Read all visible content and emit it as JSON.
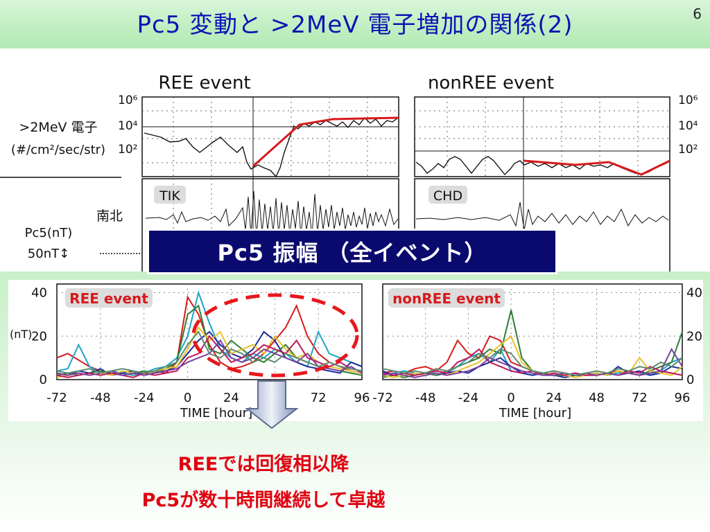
{
  "slide": {
    "title": "Pc5 変動と >2MeV 電子増加の関係(2)",
    "page_number": "6"
  },
  "upper_figure": {
    "ree_title": "REE event",
    "nonree_title": "nonREE event",
    "electron_label_1": ">2MeV 電子",
    "electron_label_2": "(#/cm²/sec/str)",
    "station_ree": "TIK",
    "station_nonree": "CHD",
    "direction_label": "南北",
    "pc5_unit": "Pc5(nT)",
    "scale_label": "50nT↕",
    "y_ticks": [
      "10⁶",
      "10⁴",
      "10²"
    ]
  },
  "banner_text": "Pc5 振幅 （全イベント）",
  "conclusion": {
    "line1": "REEでは回復相以降",
    "line2": "Pc5が数十時間継続して卓越"
  },
  "chart_data": [
    {
      "type": "line",
      "title": "REE event",
      "xlabel": "TIME [hour]",
      "ylabel": "(nT)",
      "xlim": [
        -72,
        96
      ],
      "ylim": [
        0,
        44
      ],
      "x_ticks": [
        -72,
        -48,
        -24,
        0,
        24,
        48,
        72,
        96
      ],
      "y_ticks": [
        0,
        20,
        40
      ],
      "x": [
        -72,
        -66,
        -60,
        -54,
        -48,
        -42,
        -36,
        -30,
        -24,
        -18,
        -12,
        -6,
        0,
        6,
        12,
        18,
        24,
        30,
        36,
        42,
        48,
        54,
        60,
        66,
        72,
        78,
        84,
        90,
        96
      ],
      "series": [
        {
          "color": "#d7191c",
          "values": [
            10,
            12,
            9,
            6,
            4,
            3,
            3,
            2,
            3,
            4,
            3,
            8,
            38,
            30,
            16,
            8,
            5,
            6,
            8,
            12,
            18,
            24,
            34,
            20,
            12,
            8,
            6,
            4,
            3
          ]
        },
        {
          "color": "#1fa3c6",
          "values": [
            4,
            5,
            16,
            6,
            3,
            4,
            3,
            2,
            3,
            5,
            6,
            10,
            20,
            40,
            26,
            14,
            10,
            8,
            12,
            10,
            14,
            12,
            8,
            6,
            22,
            12,
            10,
            8,
            6
          ]
        },
        {
          "color": "#1a2a9c",
          "values": [
            3,
            2,
            4,
            3,
            5,
            2,
            3,
            4,
            2,
            3,
            4,
            6,
            12,
            18,
            22,
            16,
            12,
            10,
            14,
            22,
            18,
            10,
            8,
            6,
            5,
            4,
            3,
            8,
            6
          ]
        },
        {
          "color": "#2e7d32",
          "values": [
            2,
            3,
            2,
            3,
            4,
            3,
            2,
            3,
            4,
            3,
            5,
            8,
            30,
            34,
            14,
            12,
            18,
            14,
            10,
            8,
            12,
            16,
            10,
            8,
            6,
            5,
            4,
            3,
            2
          ]
        },
        {
          "color": "#e6c229",
          "values": [
            1,
            2,
            3,
            2,
            3,
            2,
            4,
            3,
            2,
            4,
            5,
            6,
            14,
            24,
            18,
            22,
            12,
            14,
            16,
            12,
            20,
            14,
            10,
            12,
            8,
            6,
            5,
            4,
            3
          ]
        },
        {
          "color": "#c2185b",
          "values": [
            2,
            1,
            2,
            3,
            2,
            3,
            2,
            1,
            3,
            2,
            3,
            4,
            10,
            12,
            20,
            14,
            8,
            10,
            12,
            16,
            14,
            12,
            18,
            10,
            8,
            6,
            8,
            5,
            4
          ]
        },
        {
          "color": "#7b3fa0",
          "values": [
            3,
            2,
            3,
            2,
            3,
            4,
            2,
            3,
            2,
            3,
            4,
            5,
            8,
            10,
            12,
            18,
            10,
            8,
            10,
            14,
            12,
            10,
            8,
            12,
            6,
            5,
            4,
            6,
            3
          ]
        },
        {
          "color": "#5d8a6e",
          "values": [
            4,
            3,
            4,
            5,
            3,
            4,
            5,
            4,
            3,
            4,
            6,
            8,
            16,
            22,
            12,
            10,
            14,
            12,
            8,
            10,
            8,
            12,
            10,
            8,
            6,
            8,
            6,
            5,
            4
          ]
        }
      ]
    },
    {
      "type": "line",
      "title": "nonREE event",
      "xlabel": "TIME [hour]",
      "ylabel": "",
      "xlim": [
        -72,
        96
      ],
      "ylim": [
        0,
        44
      ],
      "x_ticks": [
        -72,
        -48,
        -24,
        0,
        24,
        48,
        72,
        96
      ],
      "y_ticks": [
        0,
        20,
        40
      ],
      "x": [
        -72,
        -66,
        -60,
        -54,
        -48,
        -42,
        -36,
        -30,
        -24,
        -18,
        -12,
        -6,
        0,
        6,
        12,
        18,
        24,
        30,
        36,
        42,
        48,
        54,
        60,
        66,
        72,
        78,
        84,
        90,
        96
      ],
      "series": [
        {
          "color": "#d7191c",
          "values": [
            3,
            4,
            3,
            5,
            6,
            4,
            8,
            18,
            12,
            10,
            20,
            18,
            8,
            6,
            4,
            3,
            4,
            3,
            2,
            3,
            2,
            3,
            4,
            3,
            2,
            3,
            4,
            3,
            2
          ]
        },
        {
          "color": "#1fa3c6",
          "values": [
            2,
            3,
            4,
            3,
            2,
            4,
            3,
            6,
            10,
            12,
            8,
            14,
            4,
            3,
            2,
            3,
            2,
            2,
            3,
            2,
            3,
            2,
            3,
            4,
            3,
            2,
            4,
            8,
            10
          ]
        },
        {
          "color": "#1a2a9c",
          "values": [
            4,
            2,
            3,
            2,
            3,
            2,
            3,
            4,
            3,
            6,
            8,
            10,
            6,
            3,
            2,
            3,
            2,
            1,
            2,
            2,
            3,
            2,
            6,
            3,
            4,
            2,
            3,
            6,
            5
          ]
        },
        {
          "color": "#2e7d32",
          "values": [
            1,
            2,
            1,
            2,
            3,
            2,
            4,
            6,
            8,
            10,
            14,
            12,
            32,
            10,
            4,
            3,
            2,
            2,
            3,
            2,
            3,
            2,
            4,
            3,
            2,
            4,
            6,
            8,
            22
          ]
        },
        {
          "color": "#e6c229",
          "values": [
            2,
            1,
            2,
            3,
            2,
            3,
            2,
            4,
            6,
            8,
            12,
            16,
            20,
            8,
            4,
            2,
            3,
            2,
            1,
            2,
            3,
            2,
            4,
            3,
            10,
            4,
            3,
            2,
            6
          ]
        },
        {
          "color": "#c2185b",
          "values": [
            3,
            2,
            3,
            2,
            3,
            4,
            3,
            8,
            10,
            14,
            8,
            6,
            4,
            3,
            4,
            2,
            3,
            2,
            3,
            2,
            2,
            3,
            2,
            4,
            3,
            6,
            4,
            3,
            2
          ]
        },
        {
          "color": "#7b3fa0",
          "values": [
            2,
            3,
            2,
            1,
            2,
            3,
            2,
            3,
            4,
            6,
            10,
            8,
            6,
            4,
            3,
            2,
            2,
            3,
            2,
            3,
            2,
            3,
            2,
            3,
            2,
            3,
            4,
            14,
            6
          ]
        },
        {
          "color": "#5d8a6e",
          "values": [
            5,
            4,
            3,
            4,
            3,
            5,
            4,
            6,
            8,
            12,
            10,
            14,
            12,
            6,
            4,
            3,
            4,
            3,
            2,
            3,
            4,
            3,
            5,
            4,
            6,
            5,
            8,
            6,
            10
          ]
        }
      ]
    }
  ]
}
